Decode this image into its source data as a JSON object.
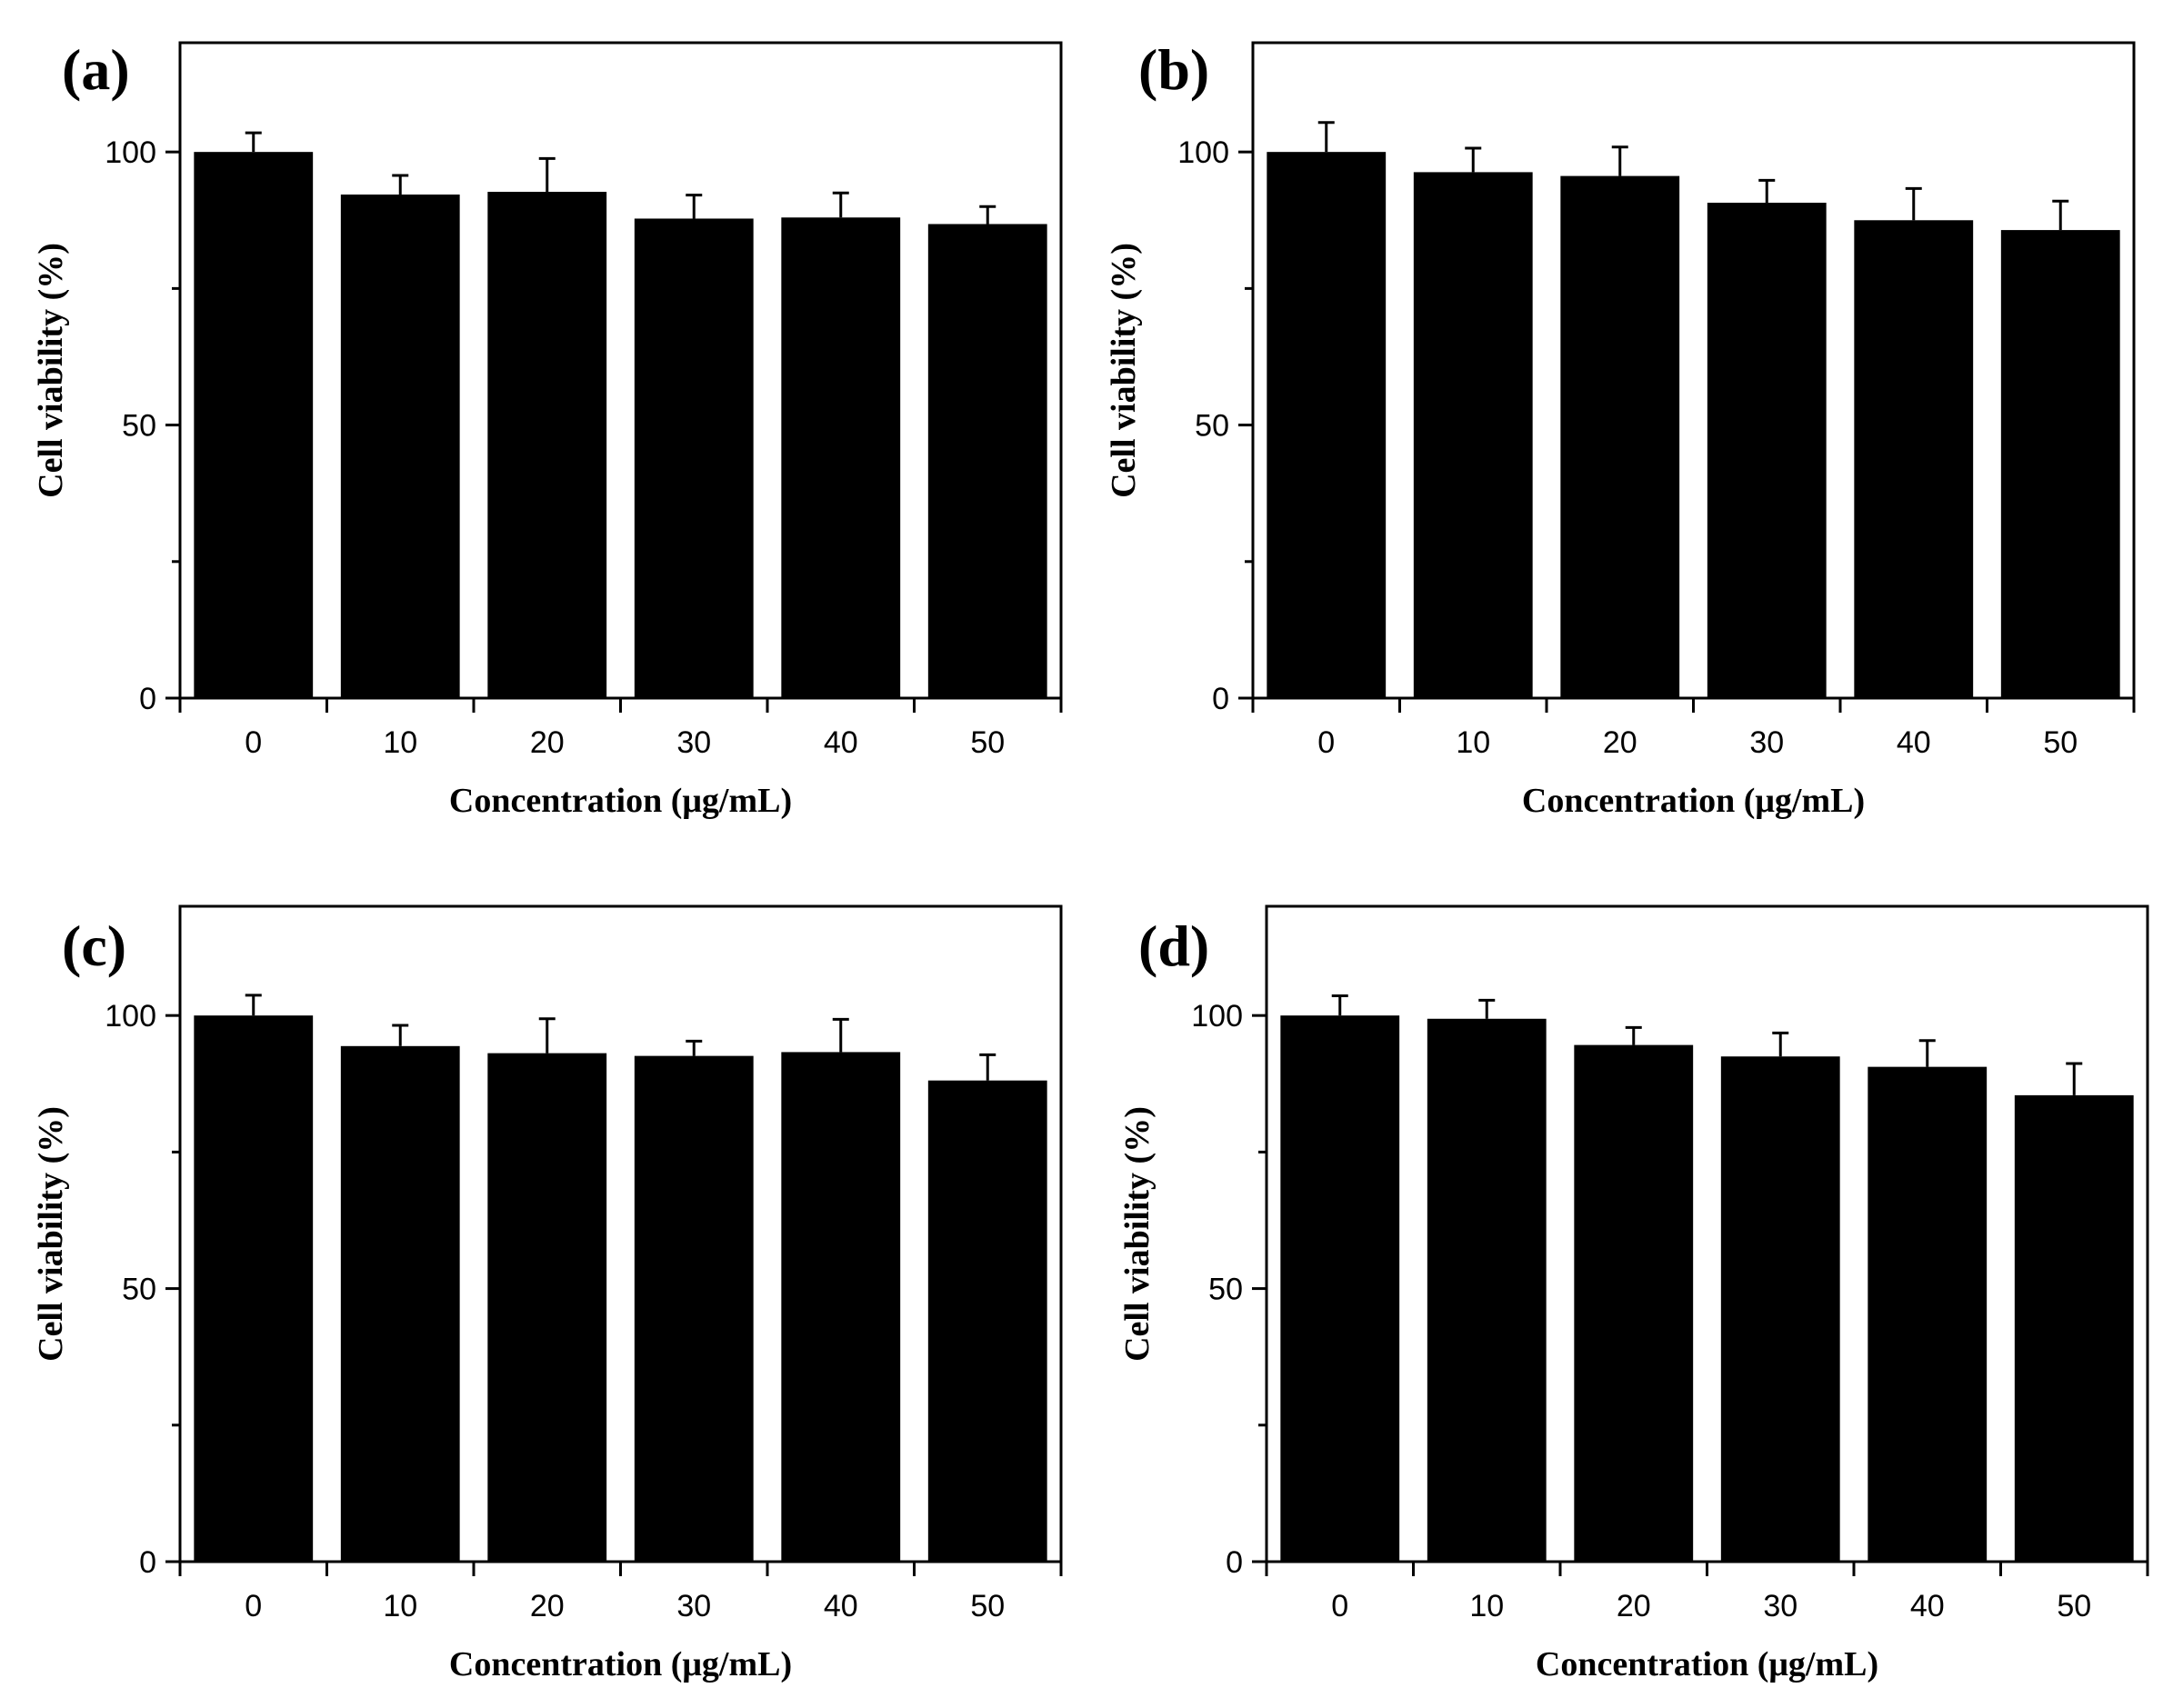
{
  "chart_data": [
    {
      "type": "bar",
      "panel_label": "(a)",
      "categories": [
        "0",
        "10",
        "20",
        "30",
        "40",
        "50"
      ],
      "values": [
        100,
        92.2,
        92.7,
        87.8,
        88.0,
        86.8
      ],
      "errors": [
        3.5,
        3.5,
        6.1,
        4.3,
        4.5,
        3.2
      ],
      "xlabel": "Concentration (μg/mL)",
      "ylabel": "Cell viability (%)",
      "ylim": [
        0,
        120
      ],
      "yticks": [
        "0",
        "50",
        "100"
      ],
      "color": "#000000"
    },
    {
      "type": "bar",
      "panel_label": "(b)",
      "categories": [
        "0",
        "10",
        "20",
        "30",
        "40",
        "50"
      ],
      "values": [
        100,
        96.3,
        95.6,
        90.7,
        87.5,
        85.7
      ],
      "errors": [
        5.4,
        4.4,
        5.3,
        4.1,
        5.8,
        5.3
      ],
      "xlabel": "Concentration (μg/mL)",
      "ylabel": "Cell viability (%)",
      "ylim": [
        0,
        120
      ],
      "yticks": [
        "0",
        "50",
        "100"
      ],
      "color": "#000000"
    },
    {
      "type": "bar",
      "panel_label": "(c)",
      "categories": [
        "0",
        "10",
        "20",
        "30",
        "40",
        "50"
      ],
      "values": [
        100,
        94.4,
        93.1,
        92.6,
        93.3,
        88.1
      ],
      "errors": [
        3.7,
        3.8,
        6.3,
        2.7,
        6.0,
        4.7
      ],
      "xlabel": "Concentration (μg/mL)",
      "ylabel": "Cell viability (%)",
      "ylim": [
        0,
        120
      ],
      "yticks": [
        "0",
        "50",
        "100"
      ],
      "color": "#000000"
    },
    {
      "type": "bar",
      "panel_label": "(d)",
      "categories": [
        "0",
        "10",
        "20",
        "30",
        "40",
        "50"
      ],
      "values": [
        100,
        99.4,
        94.6,
        92.5,
        90.6,
        85.4
      ],
      "errors": [
        3.6,
        3.4,
        3.2,
        4.3,
        4.8,
        5.8
      ],
      "xlabel": "Concentration (μg/mL)",
      "ylabel": "Cell viability (%)",
      "ylim": [
        0,
        120
      ],
      "yticks": [
        "0",
        "50",
        "100"
      ],
      "color": "#000000"
    }
  ]
}
